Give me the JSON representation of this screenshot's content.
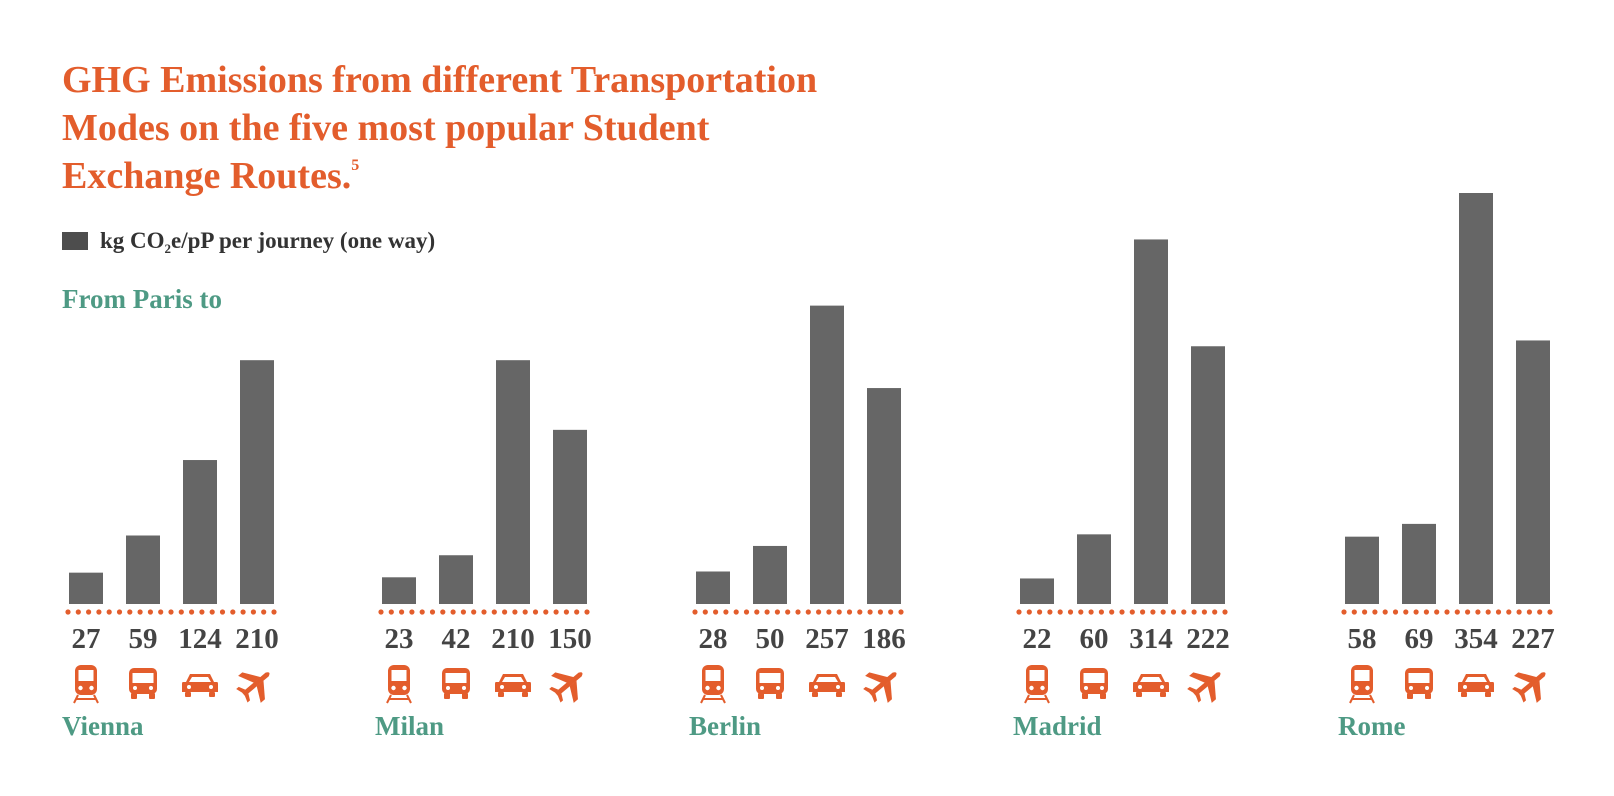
{
  "title": {
    "lines": [
      "GHG Emissions from different Transportation",
      "Modes on the five most popular Student",
      "Exchange Routes."
    ],
    "footnote": "5"
  },
  "legend": {
    "prefix": "kg CO",
    "subscript": "2",
    "suffix": "e/pP per journey (one way)"
  },
  "subtitle": "From Paris to",
  "colors": {
    "title": "#e35d2c",
    "bar": "#666666",
    "dots": "#e35d2c",
    "icon": "#e35d2c",
    "city": "#4e9a84",
    "value": "#444444"
  },
  "chart_data": {
    "type": "bar",
    "title": "GHG Emissions from different Transportation Modes on the five most popular Student Exchange Routes.",
    "ylabel": "kg CO2e/pP per journey (one way)",
    "categories": [
      "train",
      "bus",
      "car",
      "plane"
    ],
    "category_icons": [
      "train-icon",
      "bus-icon",
      "car-icon",
      "plane-icon"
    ],
    "ylim": [
      0,
      380
    ],
    "groups": [
      {
        "city": "Vienna",
        "values": [
          27,
          59,
          124,
          210
        ]
      },
      {
        "city": "Milan",
        "values": [
          23,
          42,
          210,
          150
        ]
      },
      {
        "city": "Berlin",
        "values": [
          28,
          50,
          257,
          186
        ]
      },
      {
        "city": "Madrid",
        "values": [
          22,
          60,
          314,
          222
        ]
      },
      {
        "city": "Rome",
        "values": [
          58,
          69,
          354,
          227
        ]
      }
    ]
  }
}
